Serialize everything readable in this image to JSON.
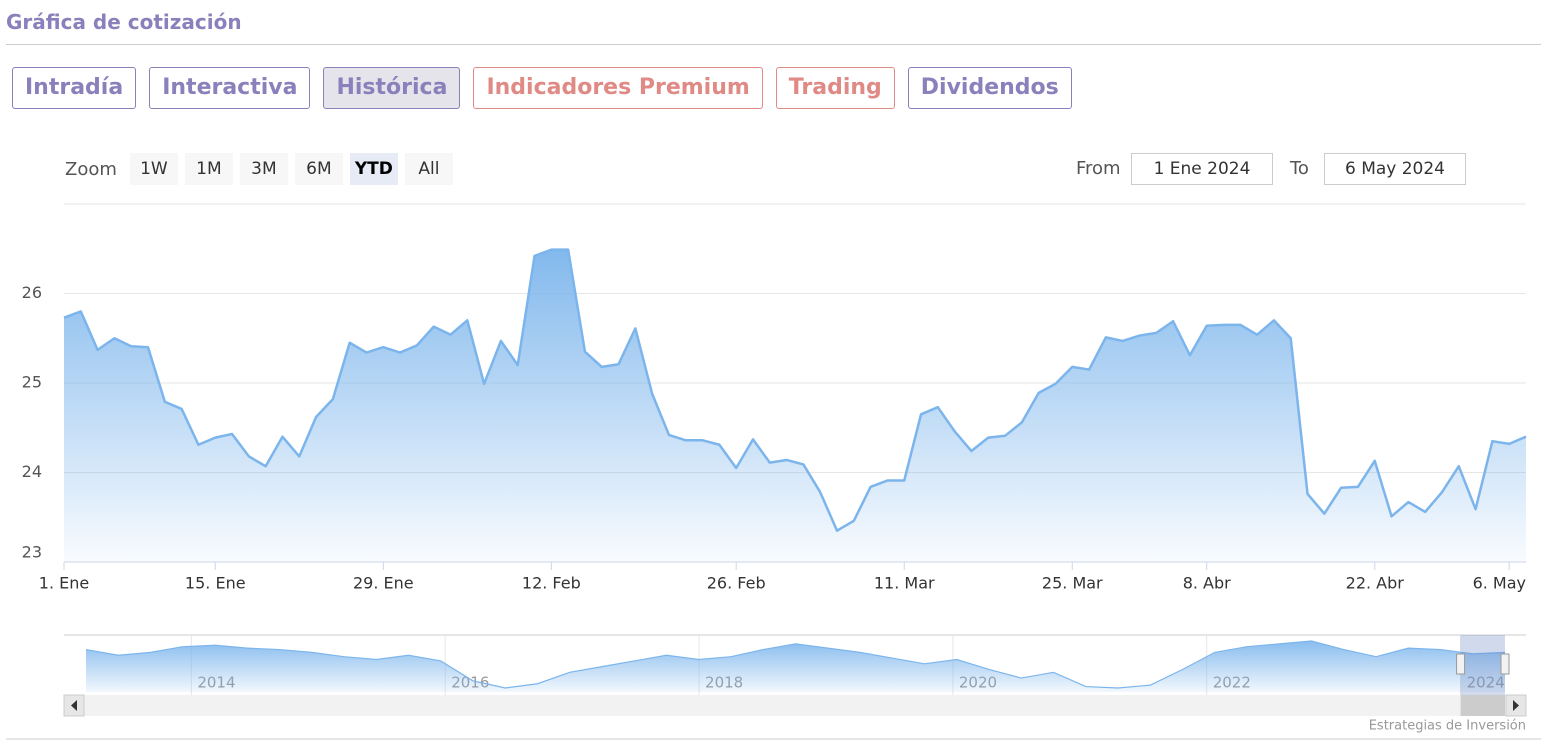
{
  "header": {
    "title": "Gráfica de cotización"
  },
  "tabs": [
    {
      "label": "Intradía",
      "color": "#8a80bb"
    },
    {
      "label": "Interactiva",
      "color": "#8a80bb"
    },
    {
      "label": "Histórica",
      "color": "#8a80bb",
      "active": true
    },
    {
      "label": "Indicadores Premium",
      "color": "#e08a86"
    },
    {
      "label": "Trading",
      "color": "#e08a86"
    },
    {
      "label": "Dividendos",
      "color": "#8a80bb"
    }
  ],
  "range_selector": {
    "zoom_label": "Zoom",
    "buttons": [
      "1W",
      "1M",
      "3M",
      "6M",
      "YTD",
      "All"
    ],
    "active": "YTD",
    "from_label": "From",
    "from": "1 Ene 2024",
    "to_label": "To",
    "to": "6 May 2024"
  },
  "chart_data": {
    "type": "line",
    "color": "#7cb5ec",
    "grid": true,
    "categories": [
      "1. Ene",
      null,
      null,
      null,
      null,
      null,
      null,
      null,
      null,
      "15. Ene",
      null,
      null,
      null,
      null,
      null,
      null,
      null,
      null,
      null,
      "29. Ene",
      null,
      null,
      null,
      null,
      null,
      null,
      null,
      null,
      null,
      "12. Feb",
      null,
      null,
      null,
      null,
      null,
      null,
      null,
      null,
      null,
      null,
      "26. Feb",
      null,
      null,
      null,
      null,
      null,
      null,
      null,
      null,
      null,
      "11. Mar",
      null,
      null,
      null,
      null,
      null,
      null,
      null,
      null,
      null,
      "25. Mar",
      null,
      null,
      null,
      null,
      null,
      null,
      null,
      "8. Abr",
      null,
      null,
      null,
      null,
      null,
      null,
      null,
      null,
      null,
      "22. Abr",
      null,
      null,
      null,
      null,
      null,
      null,
      null,
      "6. May",
      null
    ],
    "values": [
      25.73,
      25.8,
      25.37,
      25.5,
      25.41,
      25.4,
      24.79,
      24.71,
      24.31,
      24.39,
      24.43,
      24.18,
      24.07,
      24.4,
      24.18,
      24.62,
      24.82,
      25.45,
      25.34,
      25.4,
      25.34,
      25.42,
      25.63,
      25.54,
      25.7,
      24.99,
      25.47,
      25.2,
      26.42,
      26.49,
      26.49,
      25.35,
      25.18,
      25.21,
      25.61,
      24.88,
      24.42,
      24.36,
      24.36,
      24.31,
      24.05,
      24.37,
      24.11,
      24.14,
      24.09,
      23.78,
      23.35,
      23.46,
      23.84,
      23.91,
      23.91,
      24.65,
      24.73,
      24.46,
      24.24,
      24.39,
      24.41,
      24.56,
      24.89,
      24.99,
      25.18,
      25.15,
      25.51,
      25.47,
      25.53,
      25.56,
      25.69,
      25.31,
      25.64,
      25.65,
      25.65,
      25.54,
      25.7,
      25.5,
      23.76,
      23.54,
      23.83,
      23.84,
      24.13,
      23.51,
      23.67,
      23.56,
      23.78,
      24.07,
      23.59,
      24.35,
      24.32,
      24.4
    ],
    "ylim": [
      23,
      27
    ],
    "yticks": [
      23,
      24,
      25,
      26
    ],
    "navigator": {
      "xlim": [
        2013.17,
        2024.35
      ],
      "xticks": [
        2014,
        2016,
        2018,
        2020,
        2022,
        2024
      ],
      "values": [
        26.2,
        25.8,
        26.0,
        26.4,
        26.5,
        26.3,
        26.2,
        26.0,
        25.7,
        25.5,
        25.8,
        25.4,
        24.0,
        23.5,
        23.8,
        24.6,
        25.0,
        25.4,
        25.8,
        25.5,
        25.7,
        26.2,
        26.6,
        26.3,
        26.0,
        25.6,
        25.2,
        25.5,
        24.8,
        24.2,
        24.6,
        23.6,
        23.5,
        23.7,
        24.8,
        26.0,
        26.4,
        26.6,
        26.8,
        26.2,
        25.7,
        26.3,
        26.2,
        25.9,
        26.0
      ]
    },
    "credit": "Estrategias de Inversión"
  }
}
